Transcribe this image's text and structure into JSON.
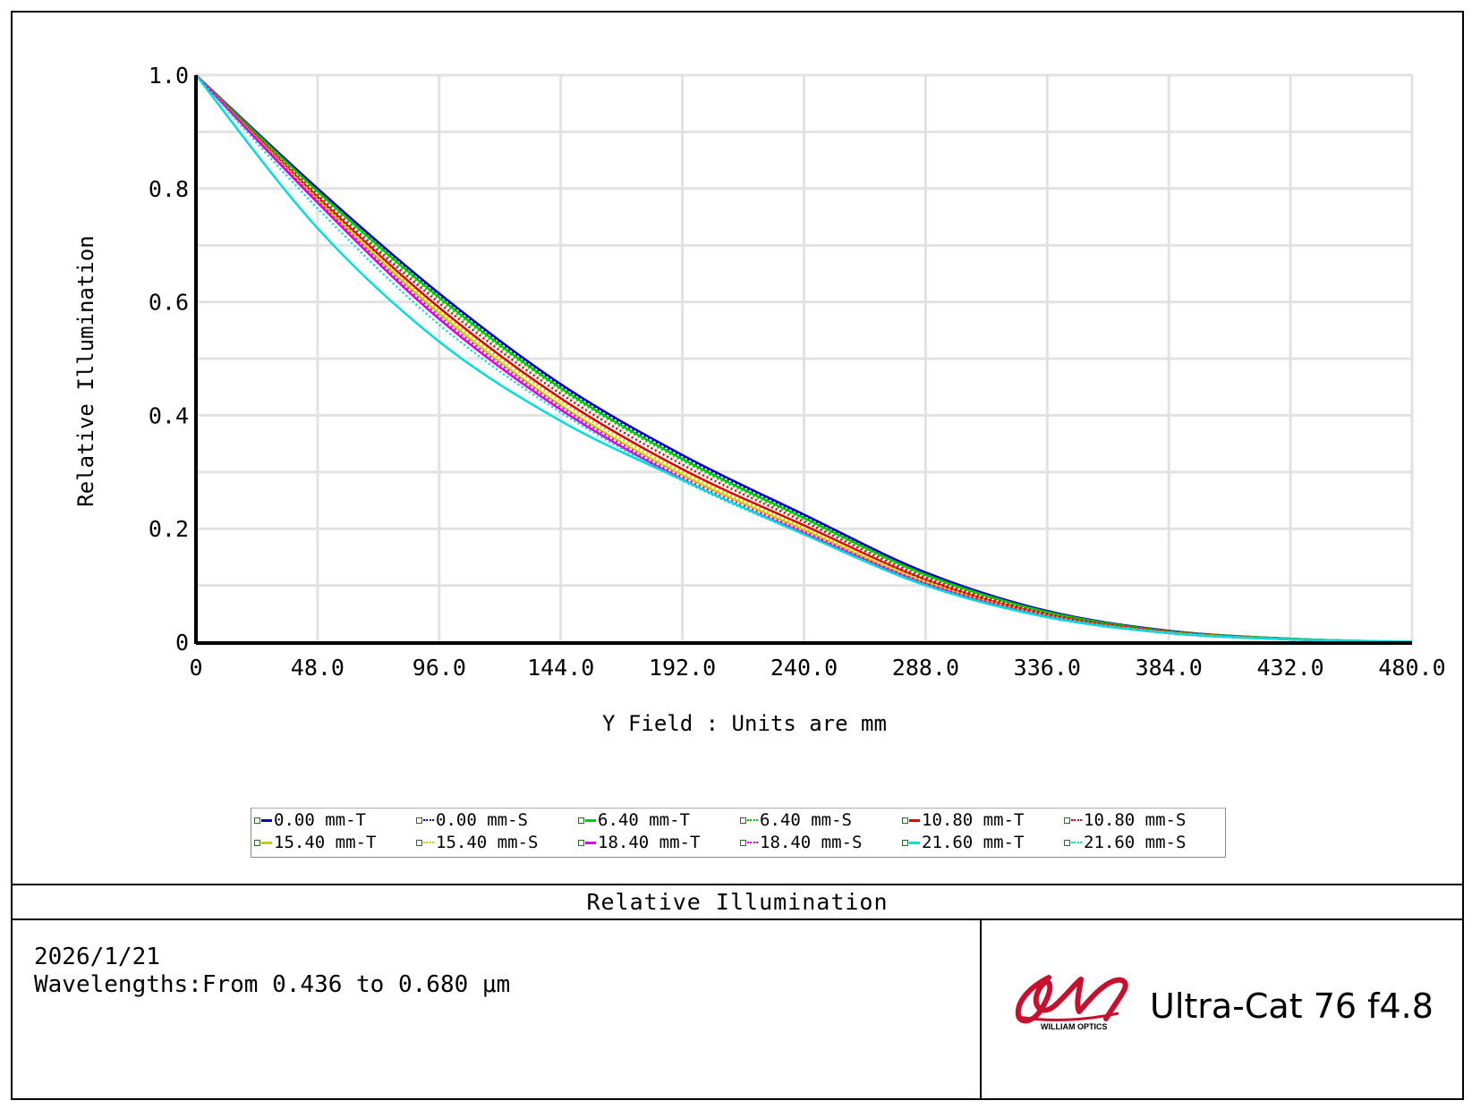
{
  "chart_data": {
    "type": "line",
    "title": "Relative Illumination",
    "xlabel": "Y Field : Units are mm",
    "ylabel": "Relative Illumination",
    "xlim": [
      0,
      480
    ],
    "ylim": [
      0,
      1.0
    ],
    "x_ticks": [
      "0",
      "48.0",
      "96.0",
      "144.0",
      "192.0",
      "240.0",
      "288.0",
      "336.0",
      "384.0",
      "432.0",
      "480.0"
    ],
    "y_ticks": [
      "0",
      "0.2",
      "0.4",
      "0.6",
      "0.8",
      "1.0"
    ],
    "grid": true,
    "legend_position": "bottom",
    "x": [
      0,
      48,
      96,
      144,
      192,
      240,
      288,
      336,
      384,
      432,
      480
    ],
    "series": [
      {
        "name": "0.00 mm-T",
        "color": "#0000cc",
        "dash": "solid",
        "values": [
          1.0,
          0.8,
          0.615,
          0.455,
          0.33,
          0.225,
          0.123,
          0.055,
          0.02,
          0.006,
          0.0
        ]
      },
      {
        "name": "0.00 mm-S",
        "color": "#0000cc",
        "dash": "dotted",
        "values": [
          1.0,
          0.798,
          0.612,
          0.452,
          0.327,
          0.222,
          0.121,
          0.054,
          0.02,
          0.006,
          0.0
        ]
      },
      {
        "name": "6.40 mm-T",
        "color": "#00cc00",
        "dash": "solid",
        "values": [
          1.0,
          0.795,
          0.608,
          0.448,
          0.323,
          0.219,
          0.119,
          0.053,
          0.019,
          0.006,
          0.0
        ]
      },
      {
        "name": "6.40 mm-S",
        "color": "#00cc00",
        "dash": "dotted",
        "values": [
          1.0,
          0.792,
          0.604,
          0.445,
          0.32,
          0.216,
          0.117,
          0.052,
          0.019,
          0.006,
          0.0
        ]
      },
      {
        "name": "10.80 mm-T",
        "color": "#dd0000",
        "dash": "solid",
        "values": [
          1.0,
          0.785,
          0.59,
          0.43,
          0.305,
          0.206,
          0.11,
          0.048,
          0.018,
          0.005,
          0.0
        ]
      },
      {
        "name": "10.80 mm-S",
        "color": "#dd0000",
        "dash": "dotted",
        "values": [
          1.0,
          0.788,
          0.598,
          0.438,
          0.313,
          0.212,
          0.114,
          0.05,
          0.018,
          0.005,
          0.0
        ]
      },
      {
        "name": "15.40 mm-T",
        "color": "#cccc00",
        "dash": "solid",
        "values": [
          1.0,
          0.78,
          0.58,
          0.418,
          0.295,
          0.198,
          0.105,
          0.046,
          0.017,
          0.005,
          0.0
        ]
      },
      {
        "name": "15.40 mm-S",
        "color": "#cccc00",
        "dash": "dotted",
        "values": [
          1.0,
          0.783,
          0.585,
          0.425,
          0.3,
          0.202,
          0.108,
          0.047,
          0.017,
          0.005,
          0.0
        ]
      },
      {
        "name": "18.40 mm-T",
        "color": "#dd00dd",
        "dash": "solid",
        "values": [
          1.0,
          0.775,
          0.57,
          0.41,
          0.287,
          0.192,
          0.102,
          0.045,
          0.016,
          0.005,
          0.0
        ]
      },
      {
        "name": "18.40 mm-S",
        "color": "#dd00dd",
        "dash": "dotted",
        "values": [
          1.0,
          0.778,
          0.575,
          0.415,
          0.291,
          0.195,
          0.104,
          0.046,
          0.016,
          0.005,
          0.0
        ]
      },
      {
        "name": "21.60 mm-T",
        "color": "#00dddd",
        "dash": "solid",
        "values": [
          1.0,
          0.73,
          0.53,
          0.39,
          0.286,
          0.19,
          0.1,
          0.044,
          0.016,
          0.005,
          0.001
        ]
      },
      {
        "name": "21.60 mm-S",
        "color": "#00dddd",
        "dash": "dotted",
        "values": [
          1.0,
          0.765,
          0.56,
          0.405,
          0.285,
          0.19,
          0.101,
          0.045,
          0.016,
          0.005,
          0.0
        ]
      }
    ]
  },
  "footer": {
    "date": "2026/1/21",
    "wavelengths": "Wavelengths:From 0.436 to 0.680 μm",
    "product_title": "Ultra-Cat 76 f4.8",
    "logo_text": "WILLIAM OPTICS"
  }
}
